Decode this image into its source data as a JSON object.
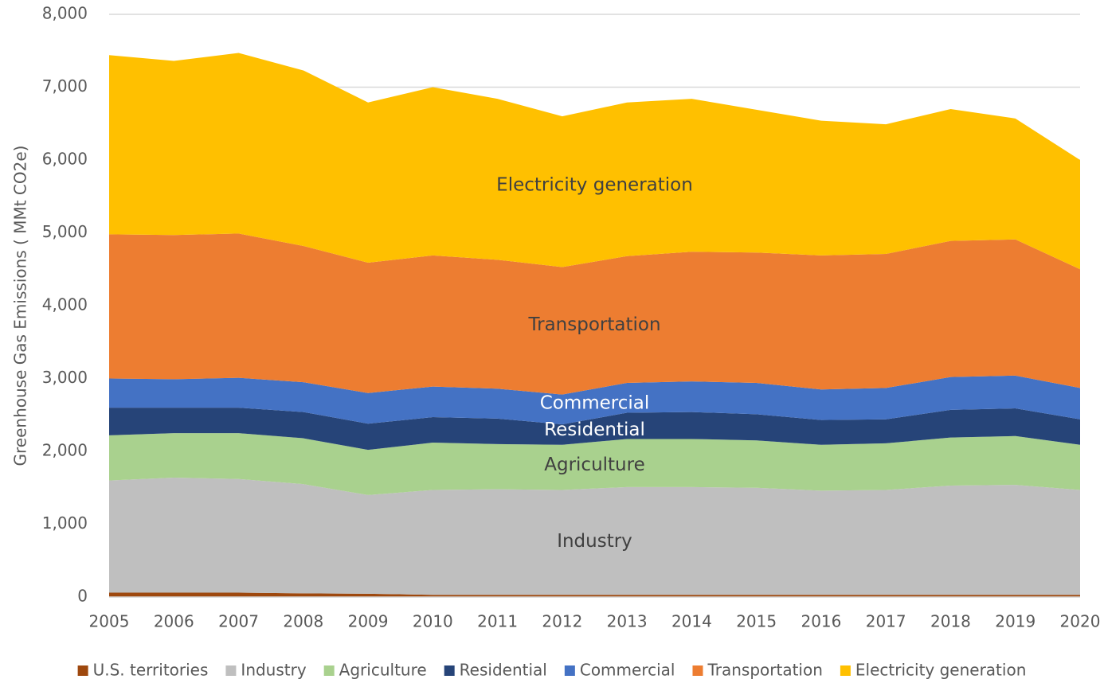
{
  "chart_data": {
    "type": "stacked_area",
    "y_axis_title": "Greenhouse Gas Emissions ( MMt CO2e)",
    "categories": [
      "2005",
      "2006",
      "2007",
      "2008",
      "2009",
      "2010",
      "2011",
      "2012",
      "2013",
      "2014",
      "2015",
      "2016",
      "2017",
      "2018",
      "2019",
      "2020"
    ],
    "series": [
      {
        "name": "U.S. territories",
        "color": "#9e480e",
        "values": [
          60,
          60,
          60,
          50,
          45,
          30,
          30,
          30,
          30,
          30,
          30,
          30,
          30,
          30,
          30,
          30
        ]
      },
      {
        "name": "Industry",
        "color": "#bfbfbf",
        "label_color": "#404040",
        "values": [
          1540,
          1580,
          1560,
          1500,
          1355,
          1440,
          1450,
          1440,
          1480,
          1480,
          1470,
          1430,
          1440,
          1500,
          1510,
          1440
        ]
      },
      {
        "name": "Agriculture",
        "color": "#a9d18e",
        "label_color": "#404040",
        "values": [
          620,
          610,
          630,
          630,
          620,
          650,
          620,
          620,
          660,
          660,
          650,
          630,
          640,
          660,
          670,
          620
        ]
      },
      {
        "name": "Residential",
        "color": "#264478",
        "label_color": "#ffffff",
        "values": [
          380,
          350,
          350,
          360,
          360,
          350,
          350,
          280,
          360,
          370,
          360,
          340,
          330,
          380,
          380,
          350
        ]
      },
      {
        "name": "Commercial",
        "color": "#4472c4",
        "label_color": "#ffffff",
        "values": [
          400,
          390,
          410,
          410,
          420,
          420,
          410,
          410,
          410,
          420,
          430,
          420,
          430,
          450,
          450,
          430
        ]
      },
      {
        "name": "Transportation",
        "color": "#ed7d31",
        "label_color": "#404040",
        "values": [
          1980,
          1980,
          1980,
          1870,
          1790,
          1800,
          1770,
          1750,
          1740,
          1780,
          1790,
          1840,
          1840,
          1870,
          1870,
          1630
        ]
      },
      {
        "name": "Electricity generation",
        "color": "#ffc000",
        "label_color": "#404040",
        "values": [
          2460,
          2390,
          2480,
          2410,
          2200,
          2310,
          2210,
          2070,
          2110,
          2100,
          1960,
          1850,
          1780,
          1810,
          1660,
          1500
        ]
      }
    ],
    "ylim": [
      0,
      8000
    ],
    "yticks": [
      0,
      {
        "value": 1000,
        "label": "1,000"
      },
      {
        "value": 2000,
        "label": "2,000"
      },
      {
        "value": 3000,
        "label": "3,000"
      },
      {
        "value": 4000,
        "label": "4,000"
      },
      {
        "value": 5000,
        "label": "5,000"
      },
      {
        "value": 6000,
        "label": "6,000"
      },
      {
        "value": 7000,
        "label": "7,000"
      },
      {
        "value": 8000,
        "label": "8,000"
      }
    ],
    "grid": true,
    "legend": "bottom"
  }
}
